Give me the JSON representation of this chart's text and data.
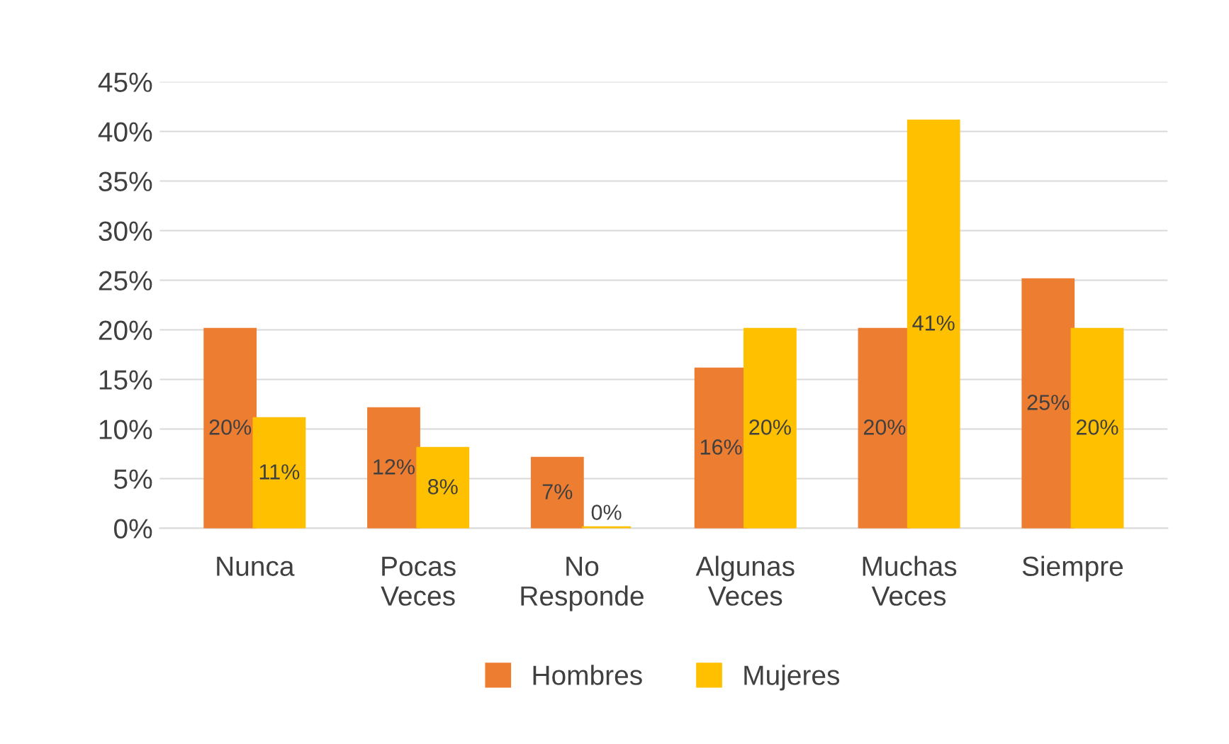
{
  "chart_data": {
    "type": "bar",
    "categories": [
      "Nunca",
      "Pocas\nVeces",
      "No\nResponde",
      "Algunas\nVeces",
      "Muchas\nVeces",
      "Siempre"
    ],
    "series": [
      {
        "name": "Hombres",
        "color": "#ed7d31",
        "values": [
          20,
          12,
          7,
          16,
          20,
          25
        ],
        "value_labels": [
          "20%",
          "12%",
          "7%",
          "16%",
          "20%",
          "25%"
        ]
      },
      {
        "name": "Mujeres",
        "color": "#ffc000",
        "values": [
          11,
          8,
          0,
          20,
          41,
          20
        ],
        "value_labels": [
          "11%",
          "8%",
          "0%",
          "20%",
          "41%",
          "20%"
        ]
      }
    ],
    "ylim": [
      0,
      45
    ],
    "yticks": [
      {
        "value": 0,
        "label": "0%"
      },
      {
        "value": 5,
        "label": "5%"
      },
      {
        "value": 10,
        "label": "10%"
      },
      {
        "value": 15,
        "label": "15%"
      },
      {
        "value": 20,
        "label": "20%"
      },
      {
        "value": 25,
        "label": "25%"
      },
      {
        "value": 30,
        "label": "30%"
      },
      {
        "value": 35,
        "label": "35%"
      },
      {
        "value": 40,
        "label": "40%"
      },
      {
        "value": 45,
        "label": "45%"
      }
    ],
    "grid": "y",
    "legend": "bottom"
  }
}
